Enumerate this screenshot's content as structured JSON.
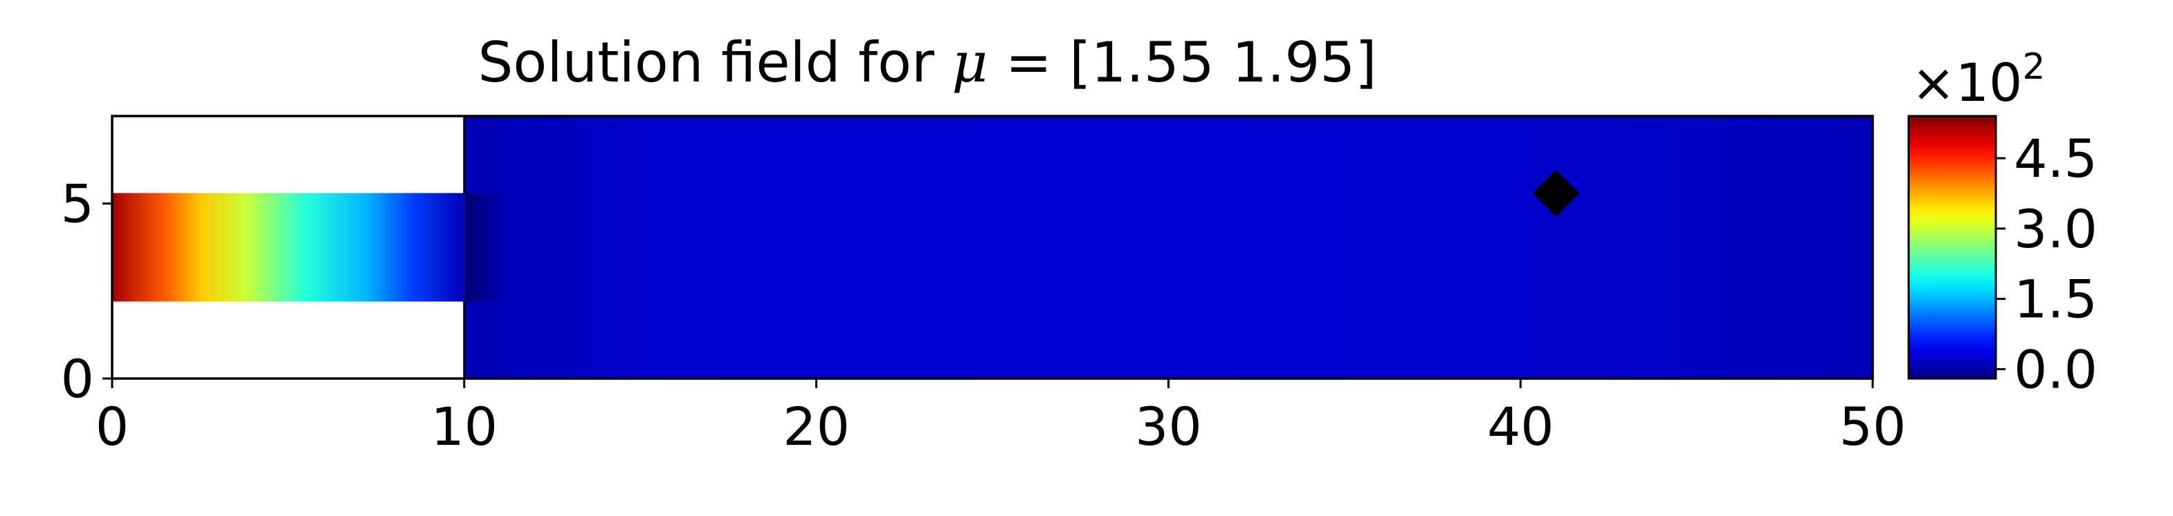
{
  "chart_data": {
    "type": "heatmap",
    "title": {
      "prefix": "Solution field for ",
      "symbol": "μ",
      "suffix": " = [1.55 1.95]"
    },
    "mu": [
      1.55,
      1.95
    ],
    "xlim": [
      0,
      50
    ],
    "ylim": [
      0,
      7.5
    ],
    "x_ticks": [
      0,
      10,
      20,
      30,
      40,
      50
    ],
    "y_ticks": [
      0,
      5
    ],
    "domain": {
      "channel": {
        "x": [
          0,
          10
        ],
        "y": [
          2.2,
          5.3
        ]
      },
      "chamber": {
        "x": [
          10,
          50
        ],
        "y": [
          0,
          7.5
        ]
      }
    },
    "field": {
      "channel_profile": [
        {
          "x": 0,
          "value": 520
        },
        {
          "x": 1.5,
          "value": 420
        },
        {
          "x": 2.5,
          "value": 360
        },
        {
          "x": 3.8,
          "value": 300
        },
        {
          "x": 5.5,
          "value": 210
        },
        {
          "x": 7.2,
          "value": 150
        },
        {
          "x": 8.5,
          "value": 85
        },
        {
          "x": 10,
          "value": 10
        }
      ],
      "chamber_profile": [
        {
          "x": 10,
          "value": 8
        },
        {
          "x": 16,
          "value": 25
        },
        {
          "x": 30,
          "value": 27
        },
        {
          "x": 42,
          "value": 22
        },
        {
          "x": 50,
          "value": 10
        }
      ]
    },
    "colorbar": {
      "colormap": "jet",
      "range": [
        -20,
        540
      ],
      "ticks": [
        0,
        150,
        300,
        450
      ],
      "tick_labels": [
        "0.0",
        "1.5",
        "3.0",
        "4.5"
      ],
      "multiplier_base": "×10",
      "multiplier_exponent": "2"
    },
    "marker": {
      "x": 41,
      "y": 5.3,
      "shape": "diamond",
      "color": "#000000"
    }
  }
}
